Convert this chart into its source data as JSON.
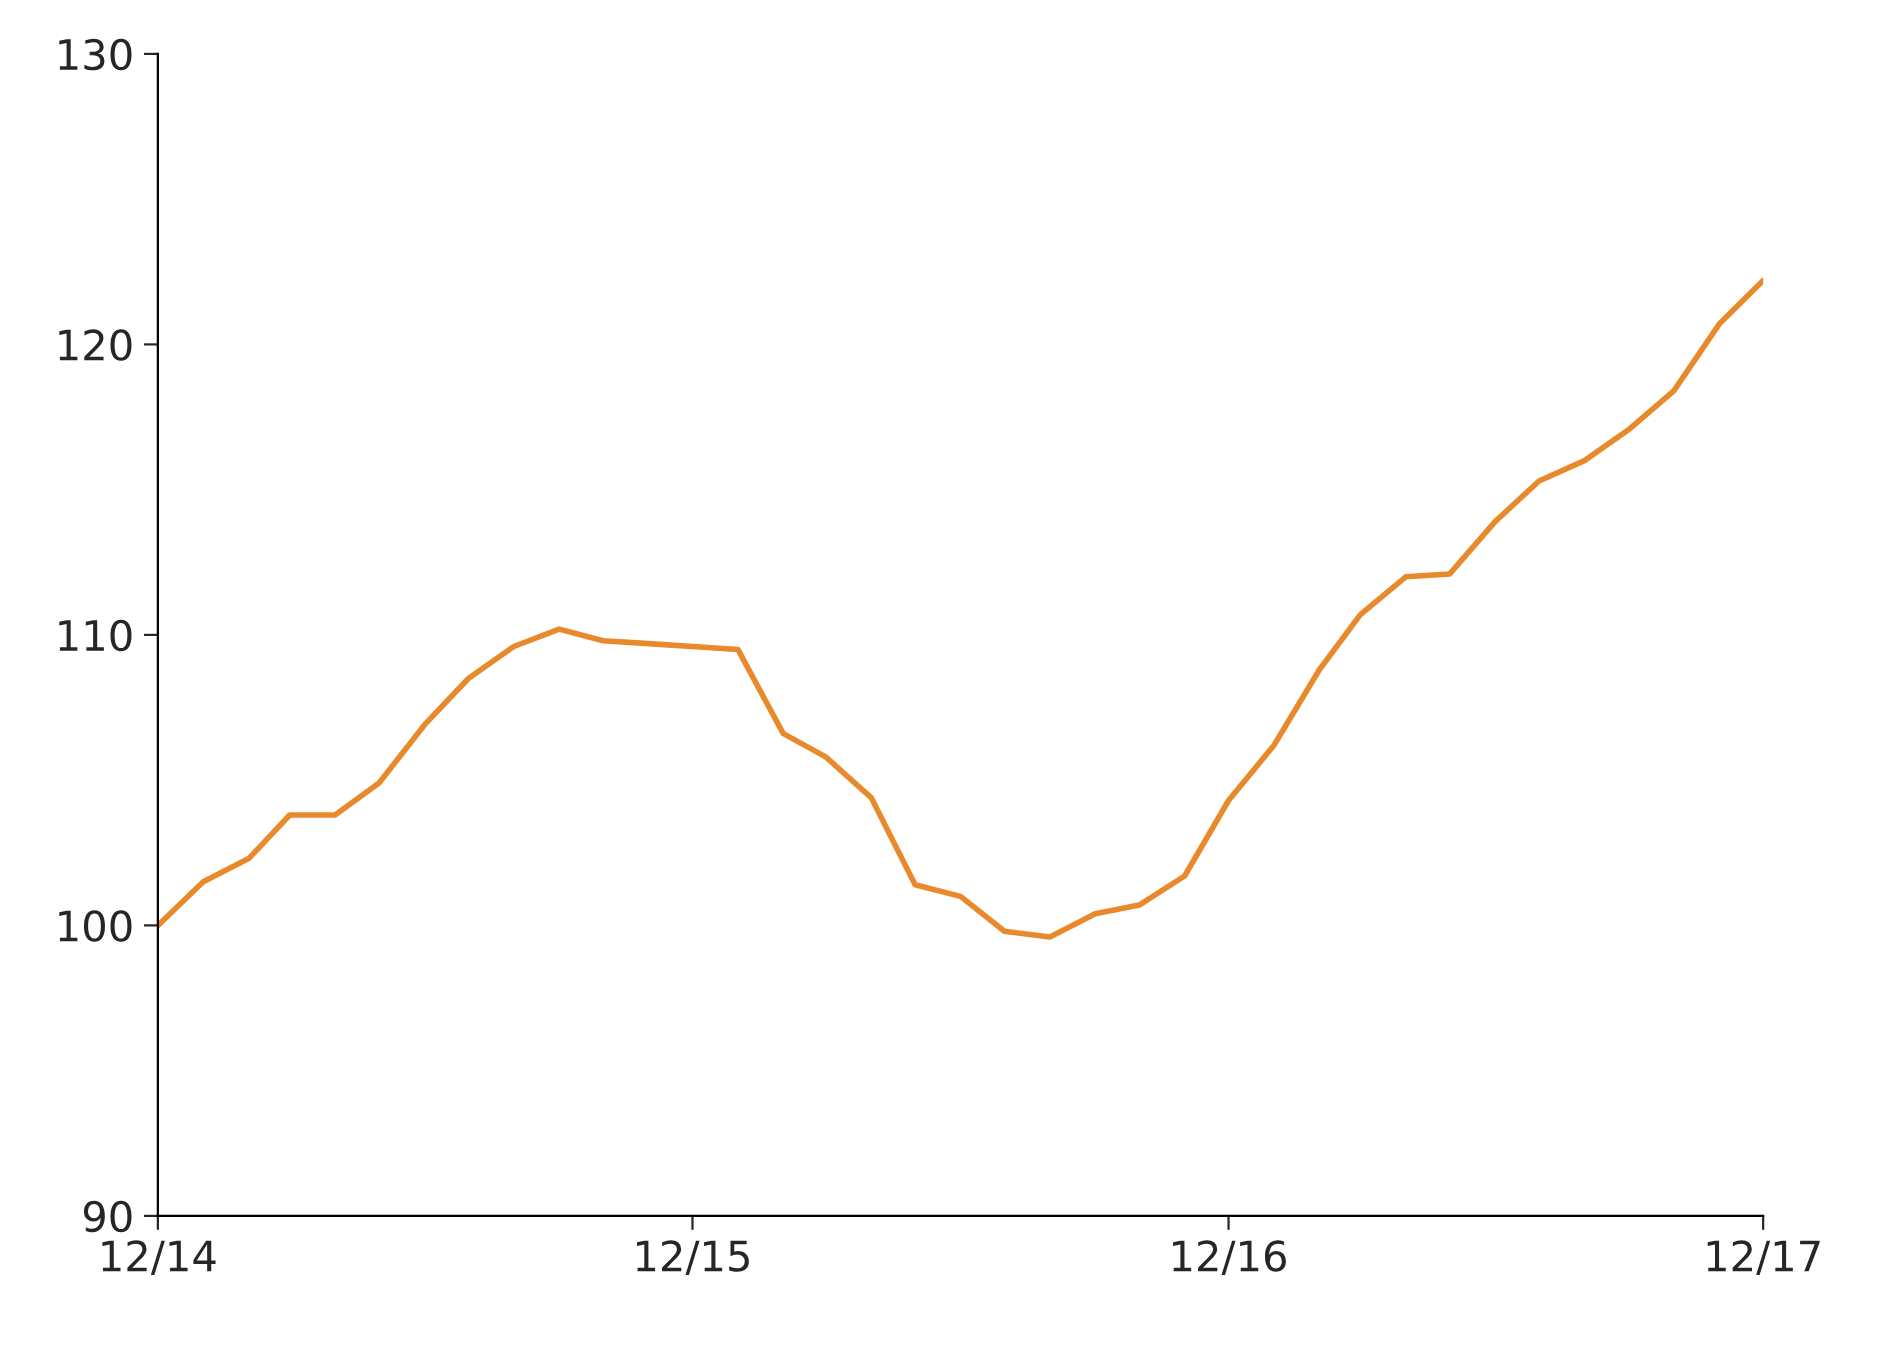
{
  "chart_data": {
    "type": "line",
    "x": [
      "2014-12",
      "2015-01",
      "2015-02",
      "2015-03",
      "2015-04",
      "2015-05",
      "2015-06",
      "2015-07",
      "2015-08",
      "2015-09",
      "2015-10",
      "2015-11",
      "2015-12",
      "2016-01",
      "2016-02",
      "2016-03",
      "2016-04",
      "2016-05",
      "2016-06",
      "2016-07",
      "2016-08",
      "2016-09",
      "2016-10",
      "2016-11",
      "2016-12",
      "2017-01",
      "2017-02",
      "2017-03",
      "2017-04",
      "2017-05",
      "2017-06",
      "2017-07",
      "2017-08",
      "2017-09",
      "2017-10",
      "2017-11",
      "2017-12"
    ],
    "series": [
      {
        "color": "#e8892b",
        "values": [
          100.0,
          101.5,
          102.3,
          103.8,
          103.8,
          104.9,
          106.9,
          108.5,
          109.6,
          110.2,
          109.8,
          109.7,
          109.6,
          109.5,
          106.6,
          105.8,
          104.4,
          101.4,
          101.0,
          99.8,
          99.6,
          100.4,
          100.7,
          101.7,
          104.3,
          106.2,
          108.8,
          110.7,
          112.0,
          112.1,
          113.9,
          115.3,
          116.0,
          117.1,
          118.4,
          120.7,
          122.2
        ]
      }
    ],
    "xlim": [
      "2014-12",
      "2017-12"
    ],
    "xticks": [
      {
        "value": "2014-12",
        "label": "12/14"
      },
      {
        "value": "2015-12",
        "label": "12/15"
      },
      {
        "value": "2016-12",
        "label": "12/16"
      },
      {
        "value": "2017-12",
        "label": "12/17"
      }
    ],
    "ylim": [
      90,
      130
    ],
    "yticks": [
      90,
      100,
      110,
      120,
      130
    ],
    "grid": false,
    "marker": "none",
    "line_style": "solid"
  }
}
